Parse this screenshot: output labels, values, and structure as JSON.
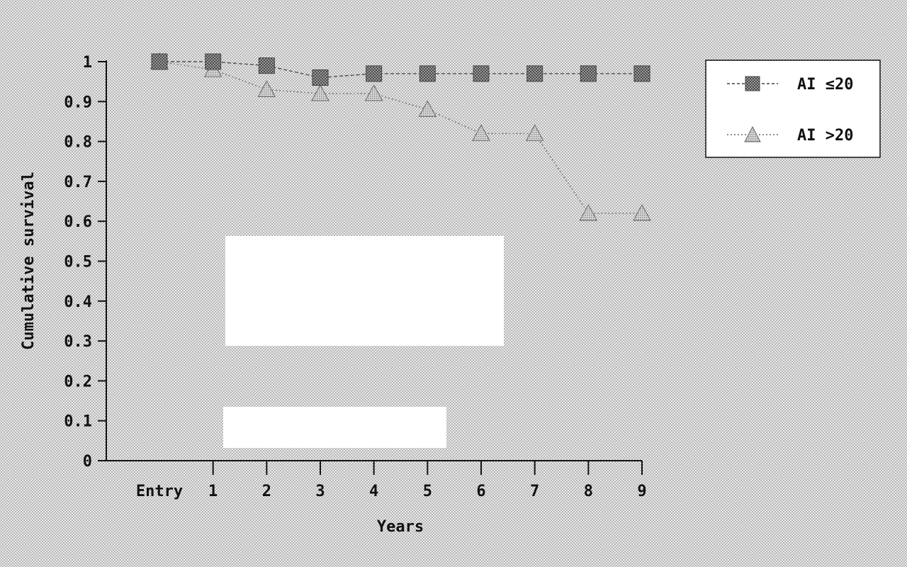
{
  "chart_data": {
    "type": "line",
    "title": "",
    "xlabel": "Years",
    "ylabel": "Cumulative survival",
    "categories": [
      "Entry",
      "1",
      "2",
      "3",
      "4",
      "5",
      "6",
      "7",
      "8",
      "9"
    ],
    "y_ticks": [
      "0",
      "0.1",
      "0.2",
      "0.3",
      "0.4",
      "0.5",
      "0.6",
      "0.7",
      "0.8",
      "0.9",
      "1"
    ],
    "ylim": [
      0,
      1
    ],
    "grid": false,
    "legend_position": "top-right",
    "series": [
      {
        "name": "AI ≤20",
        "marker": "square",
        "line_style": "dashed",
        "color": "#555555",
        "x": [
          "Entry",
          "1",
          "2",
          "3",
          "4",
          "5",
          "6",
          "7",
          "8",
          "9"
        ],
        "values": [
          1.0,
          1.0,
          0.99,
          0.96,
          0.97,
          0.97,
          0.97,
          0.97,
          0.97,
          0.97
        ]
      },
      {
        "name": "AI >20",
        "marker": "triangle",
        "line_style": "dotted",
        "color": "#777777",
        "x": [
          "Entry",
          "1",
          "2",
          "3",
          "4",
          "5",
          "6",
          "7",
          "8",
          "9"
        ],
        "values": [
          1.0,
          0.98,
          0.93,
          0.92,
          0.92,
          0.88,
          0.82,
          0.82,
          0.62,
          0.62
        ]
      }
    ]
  }
}
